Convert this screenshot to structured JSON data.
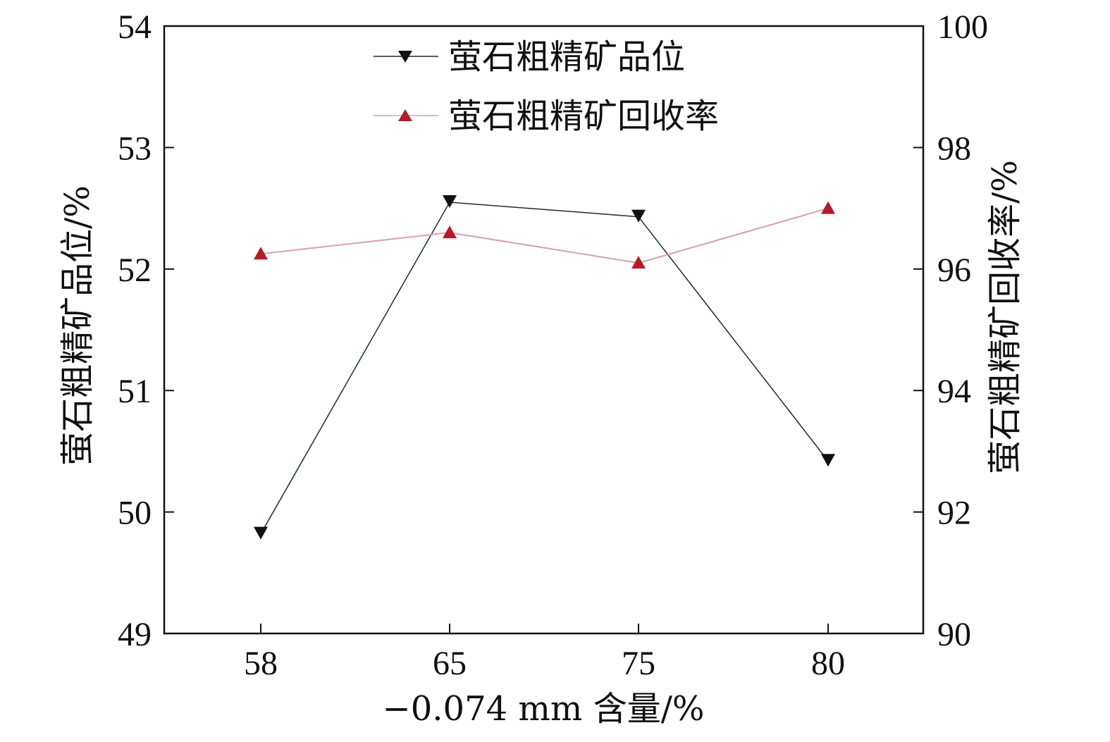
{
  "chart_data": {
    "type": "line",
    "categories": [
      "58",
      "65",
      "75",
      "80"
    ],
    "xlabel": "−0.074 mm 含量/%",
    "ylabel": "萤石粗精矿品位/%",
    "y2label": "萤石粗精矿回收率/%",
    "ylim": [
      49,
      54
    ],
    "y2lim": [
      90,
      100
    ],
    "yticks": [
      "49",
      "50",
      "51",
      "52",
      "53",
      "54"
    ],
    "y2ticks": [
      "90",
      "92",
      "94",
      "96",
      "98",
      "100"
    ],
    "grid": false,
    "legend_position": "top-center",
    "series": [
      {
        "name": "萤石粗精矿品位",
        "axis": "left",
        "marker": "triangle-down",
        "color": "#1f2a2e",
        "values": [
          49.82,
          52.55,
          52.43,
          50.42
        ]
      },
      {
        "name": "萤石粗精矿回收率",
        "axis": "right",
        "marker": "triangle-up",
        "color": "#b01c2a",
        "line_color": "#d9a0a6",
        "values": [
          96.25,
          96.6,
          96.1,
          97.0
        ]
      }
    ]
  }
}
